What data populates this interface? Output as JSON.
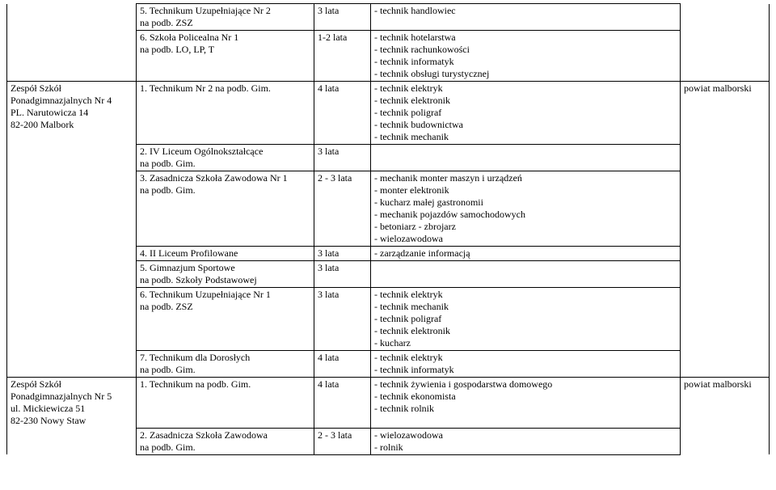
{
  "rows": [
    {
      "org": "",
      "school": "5. Technikum Uzupełniające Nr 2\nna podb. ZSZ",
      "duration": "3 lata",
      "profiles": "-  technik handlowiec",
      "note": "",
      "orgOpenTop": true,
      "orgOpenBottom": true,
      "noteOpenTop": true,
      "noteOpenBottom": true
    },
    {
      "org": "",
      "school": "6. Szkoła Policealna Nr 1\nna  podb. LO, LP, T",
      "duration": "1-2 lata",
      "profiles": "-  technik hotelarstwa\n-  technik rachunkowości\n-  technik informatyk\n-  technik obsługi turystycznej",
      "note": "",
      "orgOpenTop": true,
      "orgOpenBottom": false,
      "noteOpenTop": true,
      "noteOpenBottom": false
    },
    {
      "org": "Zespół Szkół\nPonadgimnazjalnych Nr 4\nPL. Narutowicza 14\n82-200 Malbork",
      "school": "1. Technikum Nr 2   na podb. Gim.",
      "duration": "4 lata",
      "profiles": "-  technik elektryk\n-  technik elektronik\n-  technik poligraf\n-  technik budownictwa\n-  technik mechanik",
      "note": "powiat malborski",
      "orgOpenTop": false,
      "orgOpenBottom": true,
      "noteOpenTop": false,
      "noteOpenBottom": true
    },
    {
      "org": "",
      "school": "2. IV Liceum Ogólnokształcące\nna  podb. Gim.",
      "duration": "3 lata",
      "profiles": "",
      "note": "",
      "orgOpenTop": true,
      "orgOpenBottom": true,
      "noteOpenTop": true,
      "noteOpenBottom": true
    },
    {
      "org": "",
      "school": "3. Zasadnicza Szkoła Zawodowa Nr 1\nna  podb. Gim.",
      "duration": "2 - 3 lata",
      "profiles": "-  mechanik monter maszyn i urządzeń\n-  monter elektronik\n-  kucharz małej gastronomii\n- mechanik pojazdów samochodowych\n-  betoniarz - zbrojarz\n-  wielozawodowa",
      "note": "",
      "orgOpenTop": true,
      "orgOpenBottom": true,
      "noteOpenTop": true,
      "noteOpenBottom": true
    },
    {
      "org": "",
      "school": "4. II Liceum Profilowane",
      "duration": "3 lata",
      "profiles": "-  zarządzanie informacją",
      "note": "",
      "orgOpenTop": true,
      "orgOpenBottom": true,
      "noteOpenTop": true,
      "noteOpenBottom": true
    },
    {
      "org": "",
      "school": "5. Gimnazjum Sportowe\nna podb. Szkoły Podstawowej",
      "duration": "3 lata",
      "profiles": "",
      "note": "",
      "orgOpenTop": true,
      "orgOpenBottom": true,
      "noteOpenTop": true,
      "noteOpenBottom": true
    },
    {
      "org": "",
      "school": "6. Technikum Uzupełniające Nr 1\nna podb. ZSZ",
      "duration": "3 lata",
      "profiles": "-  technik elektryk\n-  technik  mechanik\n-  technik poligraf\n-  technik elektronik\n-  kucharz",
      "note": "",
      "orgOpenTop": true,
      "orgOpenBottom": true,
      "noteOpenTop": true,
      "noteOpenBottom": true
    },
    {
      "org": "",
      "school": "7. Technikum dla Dorosłych\nna podb. Gim.",
      "duration": "4 lata",
      "profiles": "-  technik elektryk\n-  technik informatyk",
      "note": "",
      "orgOpenTop": true,
      "orgOpenBottom": false,
      "noteOpenTop": true,
      "noteOpenBottom": false
    },
    {
      "org": "Zespół Szkół\nPonadgimnazjalnych Nr 5\nul. Mickiewicza 51\n82-230 Nowy Staw",
      "school": "1. Technikum na podb. Gim.",
      "duration": "4 lata",
      "profiles": "-  technik żywienia  i gospodarstwa domowego\n-  technik ekonomista\n-  technik rolnik",
      "note": "powiat malborski",
      "orgOpenTop": false,
      "orgOpenBottom": true,
      "noteOpenTop": false,
      "noteOpenBottom": true
    },
    {
      "org": "",
      "school": "2. Zasadnicza Szkoła Zawodowa\nna podb. Gim.",
      "duration": "2 - 3 lata",
      "profiles": "-  wielozawodowa\n-  rolnik",
      "note": "",
      "orgOpenTop": true,
      "orgOpenBottom": true,
      "noteOpenTop": true,
      "noteOpenBottom": true
    }
  ]
}
